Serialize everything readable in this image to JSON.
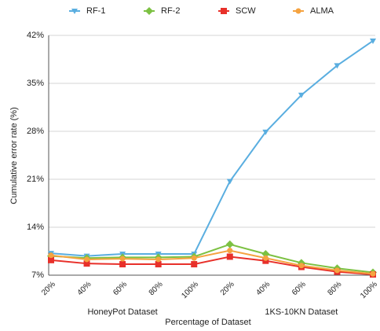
{
  "chart_data": {
    "type": "line",
    "categories": [
      "20%",
      "40%",
      "60%",
      "80%",
      "100%",
      "20%",
      "40%",
      "60%",
      "80%",
      "100%"
    ],
    "groups": [
      "HoneyPot Dataset",
      "1KS-10KN Dataset"
    ],
    "xlabel": "Percentage of Dataset",
    "ylabel": "Cumulative error rate  (%)",
    "ylim": [
      7,
      42
    ],
    "yticks": [
      {
        "value": 7,
        "label": "7%"
      },
      {
        "value": 14,
        "label": "14%"
      },
      {
        "value": 21,
        "label": "21%"
      },
      {
        "value": 28,
        "label": "28%"
      },
      {
        "value": 35,
        "label": "35%"
      },
      {
        "value": 42,
        "label": "42%"
      }
    ],
    "grid": true,
    "legend": "top",
    "series": [
      {
        "name": "RF-1",
        "color": "#5aaee0",
        "values": [
          10.2,
          9.8,
          10.1,
          10.1,
          10.1,
          20.7,
          27.9,
          33.3,
          37.6,
          41.2
        ]
      },
      {
        "name": "RF-2",
        "color": "#7cc142",
        "values": [
          9.8,
          9.5,
          9.6,
          9.6,
          9.7,
          11.5,
          10.1,
          8.8,
          8.0,
          7.4
        ]
      },
      {
        "name": "SCW",
        "color": "#e8302a",
        "values": [
          9.2,
          8.7,
          8.6,
          8.6,
          8.6,
          9.7,
          9.1,
          8.2,
          7.5,
          7.1
        ]
      },
      {
        "name": "ALMA",
        "color": "#f5a340",
        "values": [
          9.9,
          9.3,
          9.4,
          9.3,
          9.5,
          10.6,
          9.5,
          8.4,
          7.7,
          7.2
        ]
      }
    ]
  }
}
